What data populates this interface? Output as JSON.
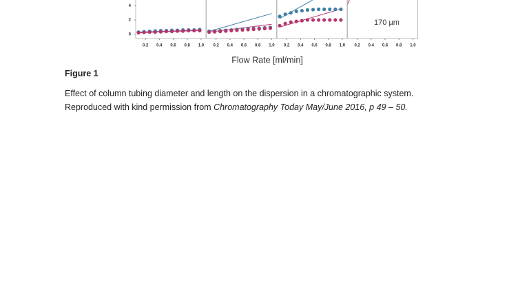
{
  "chart_data": [
    {
      "type": "scatter",
      "x": [
        0.1,
        0.18,
        0.26,
        0.34,
        0.42,
        0.5,
        0.58,
        0.66,
        0.74,
        0.82,
        0.9,
        0.98
      ],
      "series": [
        {
          "color": "#3f7fa6",
          "values": [
            0.3,
            0.35,
            0.4,
            0.45,
            0.5,
            0.5,
            0.55,
            0.55,
            0.6,
            0.6,
            0.6,
            0.65
          ]
        },
        {
          "color": "#b8336a",
          "values": [
            0.2,
            0.25,
            0.3,
            0.3,
            0.35,
            0.4,
            0.4,
            0.45,
            0.45,
            0.5,
            0.5,
            0.5
          ]
        }
      ],
      "fits": [
        {
          "color": "#3f7fa6",
          "x": [
            0.1,
            1.0
          ],
          "values": [
            0.3,
            0.6
          ]
        },
        {
          "color": "#b8336a",
          "x": [
            0.1,
            1.0
          ],
          "values": [
            0.2,
            0.55
          ]
        }
      ],
      "xlim": [
        0.06,
        1.07
      ],
      "ylim": [
        -0.6,
        4.8
      ],
      "xticks": [
        0.2,
        0.4,
        0.6,
        0.8,
        {
          "value": 1.0,
          "label": "1.0"
        }
      ],
      "yticks": [
        0,
        2,
        4
      ]
    },
    {
      "type": "scatter",
      "x": [
        0.1,
        0.18,
        0.26,
        0.34,
        0.42,
        0.5,
        0.58,
        0.66,
        0.74,
        0.82,
        0.9,
        0.98
      ],
      "series": [
        {
          "color": "#3f7fa6",
          "values": [
            0.4,
            0.45,
            0.5,
            0.55,
            0.6,
            0.65,
            0.7,
            0.75,
            0.8,
            0.85,
            0.9,
            0.95
          ]
        },
        {
          "color": "#b8336a",
          "values": [
            0.3,
            0.35,
            0.4,
            0.45,
            0.5,
            0.55,
            0.6,
            0.65,
            0.7,
            0.75,
            0.8,
            0.85
          ]
        }
      ],
      "fits": [
        {
          "color": "#3f7fa6",
          "x": [
            0.1,
            1.0
          ],
          "values": [
            0.4,
            2.9
          ]
        },
        {
          "color": "#b8336a",
          "x": [
            0.1,
            1.0
          ],
          "values": [
            0.3,
            1.4
          ]
        }
      ],
      "xlim": [
        0.06,
        1.07
      ],
      "ylim": [
        -0.6,
        4.8
      ],
      "xticks": [
        0.2,
        0.4,
        0.6,
        0.8,
        {
          "value": 1.0,
          "label": "1.0"
        }
      ]
    },
    {
      "type": "scatter",
      "x": [
        0.1,
        0.18,
        0.26,
        0.34,
        0.42,
        0.5,
        0.58,
        0.66,
        0.74,
        0.82,
        0.9,
        0.98
      ],
      "series": [
        {
          "color": "#3f7fa6",
          "values": [
            2.5,
            2.8,
            3.0,
            3.2,
            3.3,
            3.4,
            3.45,
            3.5,
            3.5,
            3.5,
            3.5,
            3.5
          ]
        },
        {
          "color": "#b8336a",
          "values": [
            1.2,
            1.5,
            1.7,
            1.8,
            1.9,
            2.0,
            2.0,
            2.0,
            2.0,
            2.0,
            2.0,
            2.0
          ]
        }
      ],
      "fits": [
        {
          "color": "#3f7fa6",
          "x": [
            0.1,
            0.7
          ],
          "values": [
            2.2,
            5.5
          ]
        },
        {
          "color": "#b8336a",
          "x": [
            0.1,
            1.0
          ],
          "values": [
            1.0,
            3.6
          ]
        }
      ],
      "xlim": [
        0.06,
        1.07
      ],
      "ylim": [
        -0.6,
        4.8
      ],
      "xticks": [
        0.2,
        0.4,
        0.6,
        0.8,
        {
          "value": 1.0,
          "label": "1.0"
        }
      ]
    },
    {
      "type": "scatter",
      "x": [],
      "series": [],
      "fits": [
        {
          "color": "#b8336a",
          "x": [
            0.05,
            0.12
          ],
          "values": [
            4.0,
            5.5
          ]
        }
      ],
      "annotation": "170 µm",
      "xlim": [
        0.06,
        1.07
      ],
      "ylim": [
        -0.6,
        4.8
      ],
      "xticks": [
        0.2,
        0.4,
        0.6,
        0.8,
        {
          "value": 1.0,
          "label": "1.0"
        }
      ]
    }
  ],
  "figure": {
    "xlabel": "Flow Rate [ml/min]",
    "label": "Figure 1",
    "caption": {
      "line1": "Effect of column tubing diameter and length on the dispersion in a chromatographic system.",
      "line2_plain": "Reproduced with kind permission from ",
      "line2_italic": "Chromatography Today May/June 2016, p 49 – 50."
    }
  }
}
